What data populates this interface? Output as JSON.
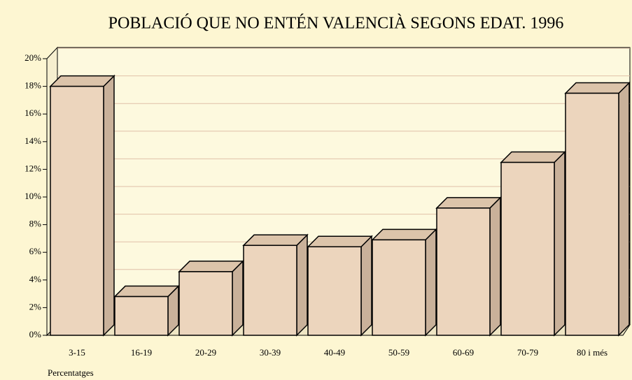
{
  "chart_data": {
    "type": "bar3d",
    "title": "POBLACIÓ QUE NO ENTÉN VALENCIÀ SEGONS EDAT. 1996",
    "categories": [
      "3-15",
      "16-19",
      "20-29",
      "30-39",
      "40-49",
      "50-59",
      "60-69",
      "70-79",
      "80 i més"
    ],
    "values": [
      18,
      2.8,
      4.6,
      6.5,
      6.4,
      6.9,
      9.2,
      12.5,
      17.5
    ],
    "color": "#ecd5bd",
    "ylim": [
      0,
      20
    ],
    "yticks": [
      {
        "value": 0,
        "label": "0%"
      },
      {
        "value": 2,
        "label": "2%"
      },
      {
        "value": 4,
        "label": "4%"
      },
      {
        "value": 6,
        "label": "6%"
      },
      {
        "value": 8,
        "label": "8%"
      },
      {
        "value": 10,
        "label": "10%"
      },
      {
        "value": 12,
        "label": "12%"
      },
      {
        "value": 14,
        "label": "14%"
      },
      {
        "value": 16,
        "label": "16%"
      },
      {
        "value": 18,
        "label": "18%"
      },
      {
        "value": 20,
        "label": "20%"
      }
    ],
    "grid": true,
    "y_label": "Percentatges"
  }
}
